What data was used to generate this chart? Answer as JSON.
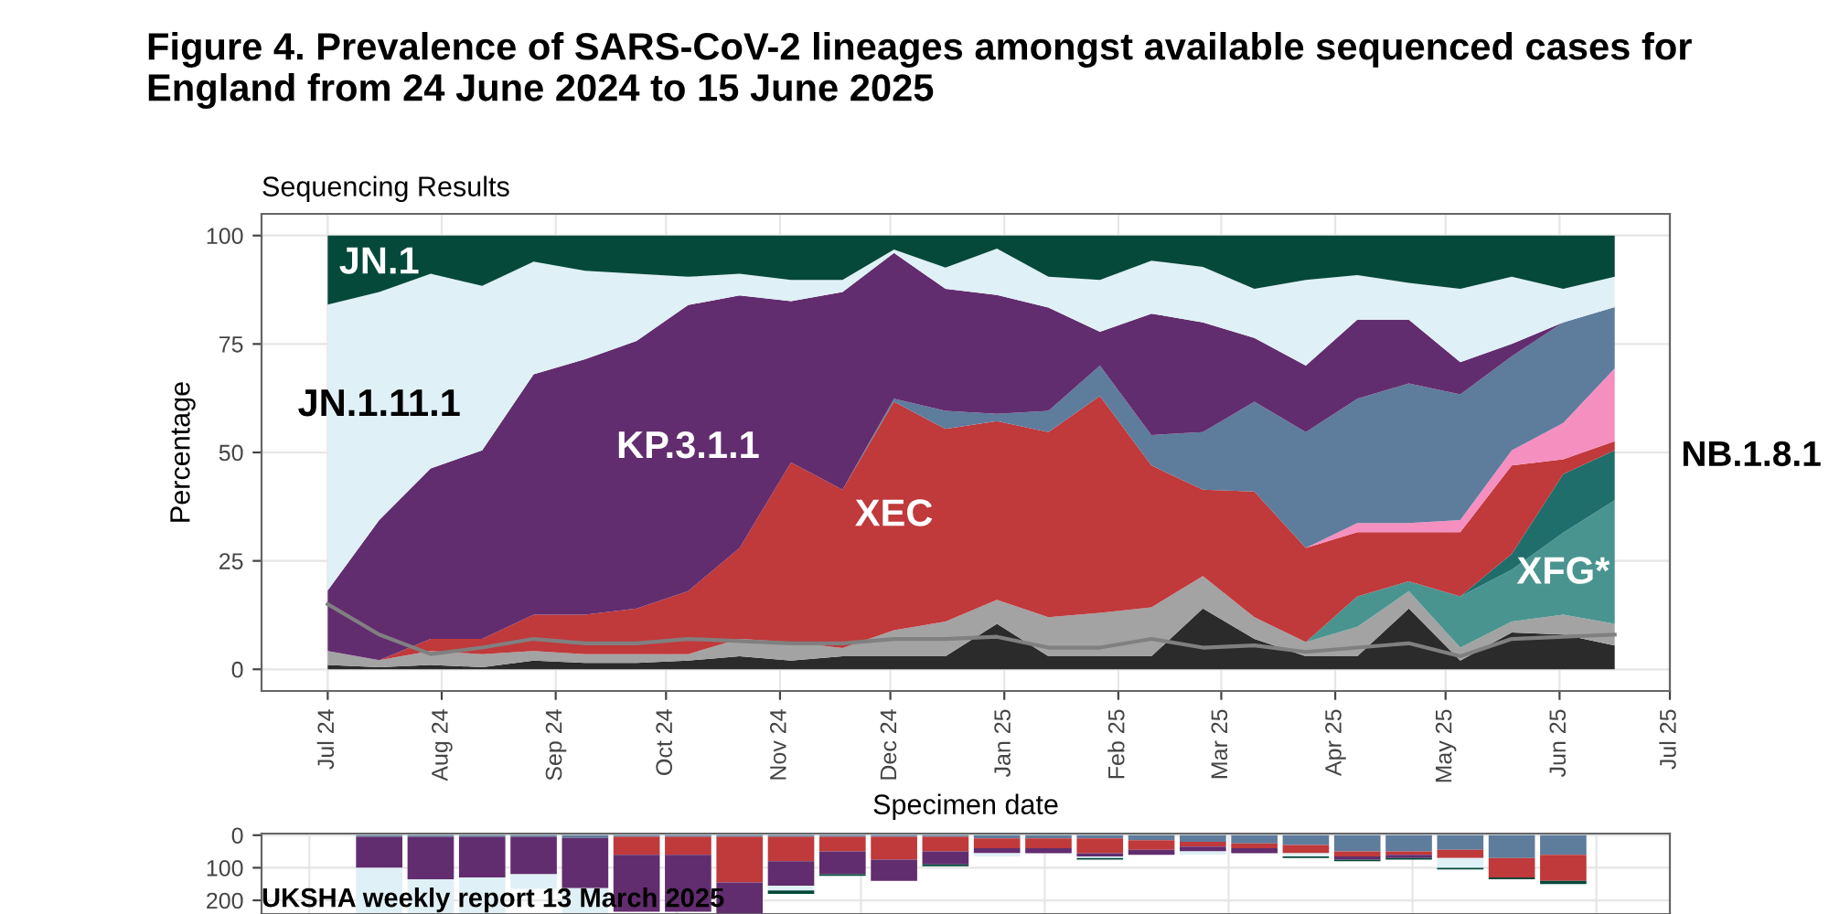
{
  "chart_data": [
    {
      "type": "area",
      "stacked": true,
      "title": "Figure 4. Prevalence of SARS-CoV-2 lineages amongst available sequenced cases for England from 24 June 2024 to 15 June 2025",
      "subtitle": "Sequencing Results",
      "xlabel": "Specimen date",
      "ylabel": "Percentage",
      "x": [
        "2024-07-01",
        "2024-07-15",
        "2024-07-29",
        "2024-08-12",
        "2024-08-26",
        "2024-09-09",
        "2024-09-23",
        "2024-10-07",
        "2024-10-21",
        "2024-11-04",
        "2024-11-18",
        "2024-12-02",
        "2024-12-16",
        "2024-12-30",
        "2025-01-13",
        "2025-01-27",
        "2025-02-10",
        "2025-02-24",
        "2025-03-10",
        "2025-03-24",
        "2025-04-07",
        "2025-04-21",
        "2025-05-05",
        "2025-05-19",
        "2025-06-02",
        "2025-06-16"
      ],
      "series": [
        {
          "color": "#2b2b2b",
          "values": [
            1,
            0.5,
            1,
            0.5,
            2,
            1.5,
            1.5,
            2,
            3,
            2,
            3,
            3,
            3,
            10.5,
            3,
            3,
            3,
            14,
            7,
            3,
            3,
            14,
            2,
            8.5,
            8,
            5.5
          ]
        },
        {
          "color": "#a3a3a3",
          "values": [
            3.2,
            1.6,
            3.2,
            3,
            2.2,
            2,
            2,
            1.5,
            4,
            4.3,
            1.9,
            6,
            8,
            5.5,
            9,
            10,
            11.3,
            7.5,
            5,
            3.3,
            6.8,
            4,
            3,
            2.5,
            4.6,
            5
          ]
        },
        {
          "name": "XFG*",
          "color": "#4a9490",
          "values": [
            0,
            0,
            0,
            0,
            0,
            0,
            0,
            0,
            0,
            0,
            0,
            0,
            0,
            0,
            0,
            0,
            0,
            0,
            0,
            0,
            7,
            2.3,
            11.8,
            12,
            18.9,
            28.5
          ]
        },
        {
          "color": "#1f6e6b",
          "values": [
            0,
            0,
            0,
            0,
            0,
            0,
            0,
            0,
            0,
            0,
            0,
            0,
            0,
            0,
            0,
            0,
            0,
            0,
            0,
            0,
            0,
            0,
            0,
            3.6,
            13.5,
            11.5
          ]
        },
        {
          "name": "XEC",
          "color": "#c0393b",
          "values": [
            0,
            0,
            2.8,
            3.5,
            8.4,
            9.1,
            10.5,
            14.5,
            21,
            41.4,
            36.5,
            52.7,
            44.4,
            41.2,
            42.7,
            50,
            32.7,
            19.9,
            29,
            21.7,
            14.8,
            11.3,
            14.8,
            20.4,
            3.4,
            2.1
          ]
        },
        {
          "name": "NB.1.8.1",
          "color": "#f58fc0",
          "values": [
            0,
            0,
            0,
            0,
            0,
            0,
            0,
            0,
            0,
            0,
            0,
            0,
            0,
            0,
            0,
            0,
            0,
            0,
            0,
            0,
            2.1,
            2.1,
            2.8,
            3.5,
            8.4,
            16.8
          ]
        },
        {
          "color": "#5e7c9c",
          "values": [
            0,
            0,
            0,
            0,
            0,
            0,
            0,
            0,
            0,
            0,
            0,
            0.7,
            4.2,
            1.7,
            4.9,
            7,
            7,
            13.3,
            20.7,
            26.7,
            28.7,
            32.2,
            29,
            21.7,
            23.2,
            14.1
          ]
        },
        {
          "name": "KP.3.1.1",
          "color": "#622d6e",
          "values": [
            14,
            32.3,
            39.3,
            43.5,
            55.4,
            58.9,
            61.7,
            66,
            58.2,
            37.2,
            45.6,
            33.6,
            28.1,
            27.4,
            23.8,
            7.8,
            28,
            25.3,
            14.7,
            15.3,
            18.2,
            14.7,
            7.4,
            2.8,
            0,
            0
          ]
        },
        {
          "name": "JN.1.11.1",
          "color": "#dff0f6",
          "values": [
            65.9,
            52.6,
            44.9,
            37.9,
            26,
            20.4,
            15.5,
            6.5,
            5,
            4.9,
            2.8,
            0.8,
            4.9,
            10.7,
            7.1,
            12,
            12.2,
            12.8,
            11.3,
            19.8,
            10.3,
            8.5,
            16.9,
            15.5,
            7.7,
            7
          ]
        },
        {
          "name": "JN.1",
          "color": "#05493a",
          "values": [
            15.9,
            13,
            8.8,
            11.6,
            6,
            8.1,
            8.8,
            9.5,
            8.8,
            10.2,
            10.2,
            3.2,
            7.4,
            3,
            9.5,
            10.2,
            5.8,
            7.2,
            12.3,
            10.2,
            9.1,
            10.9,
            12.3,
            9.5,
            12.3,
            9.5
          ]
        },
        {
          "type": "line",
          "color": "#808080",
          "values": [
            15,
            8,
            3.5,
            5,
            7,
            6,
            6,
            7,
            6.5,
            6,
            6,
            7,
            7,
            7.5,
            5,
            5,
            7,
            5,
            5.5,
            4,
            5,
            6,
            3,
            7,
            7.5,
            8
          ]
        }
      ],
      "xlim": [
        "2024-06-13",
        "2025-07-01"
      ],
      "xticks": [
        {
          "value": "2024-07-01",
          "label": "Jul 24"
        },
        {
          "value": "2024-08-01",
          "label": "Aug 24"
        },
        {
          "value": "2024-09-01",
          "label": "Sep 24"
        },
        {
          "value": "2024-10-01",
          "label": "Oct 24"
        },
        {
          "value": "2024-11-01",
          "label": "Nov 24"
        },
        {
          "value": "2024-12-01",
          "label": "Dec 24"
        },
        {
          "value": "2025-01-01",
          "label": "Jan 25"
        },
        {
          "value": "2025-02-01",
          "label": "Feb 25"
        },
        {
          "value": "2025-03-01",
          "label": "Mar 25"
        },
        {
          "value": "2025-04-01",
          "label": "Apr 25"
        },
        {
          "value": "2025-05-01",
          "label": "May 25"
        },
        {
          "value": "2025-06-01",
          "label": "Jun 25"
        },
        {
          "value": "2025-07-01",
          "label": "Jul 25"
        }
      ],
      "ylim": [
        -5,
        105
      ],
      "yticks": [
        0,
        25,
        50,
        75,
        100
      ],
      "grid": true
    },
    {
      "type": "bar",
      "stacked": true,
      "x": [
        "2024-07-15",
        "2024-07-29",
        "2024-08-12",
        "2024-08-26",
        "2024-09-09",
        "2024-09-23",
        "2024-10-07",
        "2024-10-21",
        "2024-11-04",
        "2024-11-18",
        "2024-12-02",
        "2024-12-16",
        "2024-12-30",
        "2025-01-13",
        "2025-01-27",
        "2025-02-10",
        "2025-02-24",
        "2025-03-10",
        "2025-03-24",
        "2025-04-07",
        "2025-04-21",
        "2025-05-05",
        "2025-05-19",
        "2025-06-02"
      ],
      "series": [
        {
          "color": "#5e7c9c",
          "values": [
            5,
            5,
            5,
            5,
            8,
            5,
            5,
            5,
            5,
            5,
            5,
            5,
            10,
            10,
            10,
            15,
            20,
            25,
            30,
            50,
            50,
            45,
            70,
            60
          ]
        },
        {
          "color": "#c0393b",
          "values": [
            0,
            0,
            0,
            0,
            0,
            55,
            55,
            140,
            75,
            45,
            70,
            45,
            30,
            30,
            45,
            30,
            15,
            15,
            25,
            15,
            10,
            25,
            60,
            80
          ]
        },
        {
          "color": "#622d6e",
          "values": [
            95,
            130,
            125,
            115,
            155,
            175,
            175,
            95,
            75,
            70,
            65,
            40,
            15,
            15,
            10,
            15,
            15,
            15,
            0,
            10,
            10,
            0,
            0,
            0
          ]
        },
        {
          "color": "#dff0f6",
          "values": [
            140,
            105,
            110,
            45,
            77,
            0,
            0,
            0,
            15,
            0,
            0,
            0,
            10,
            null,
            5,
            0,
            10,
            null,
            10,
            0,
            0,
            30,
            0,
            0
          ]
        },
        {
          "color": "#05493a",
          "values": [
            0,
            0,
            0,
            null,
            0,
            0,
            0,
            0,
            10,
            5,
            0,
            5,
            0,
            0,
            5,
            0,
            0,
            0,
            5,
            5,
            5,
            5,
            5,
            10
          ]
        }
      ],
      "xlim": [
        "2024-06-13",
        "2025-07-01"
      ],
      "ylim": [
        242,
        -5
      ],
      "yticks": [
        0,
        100,
        200
      ],
      "tick_labels": "y",
      "grid": true,
      "annotations": [
        "UKSHA weekly report 13 March 2025"
      ]
    }
  ]
}
